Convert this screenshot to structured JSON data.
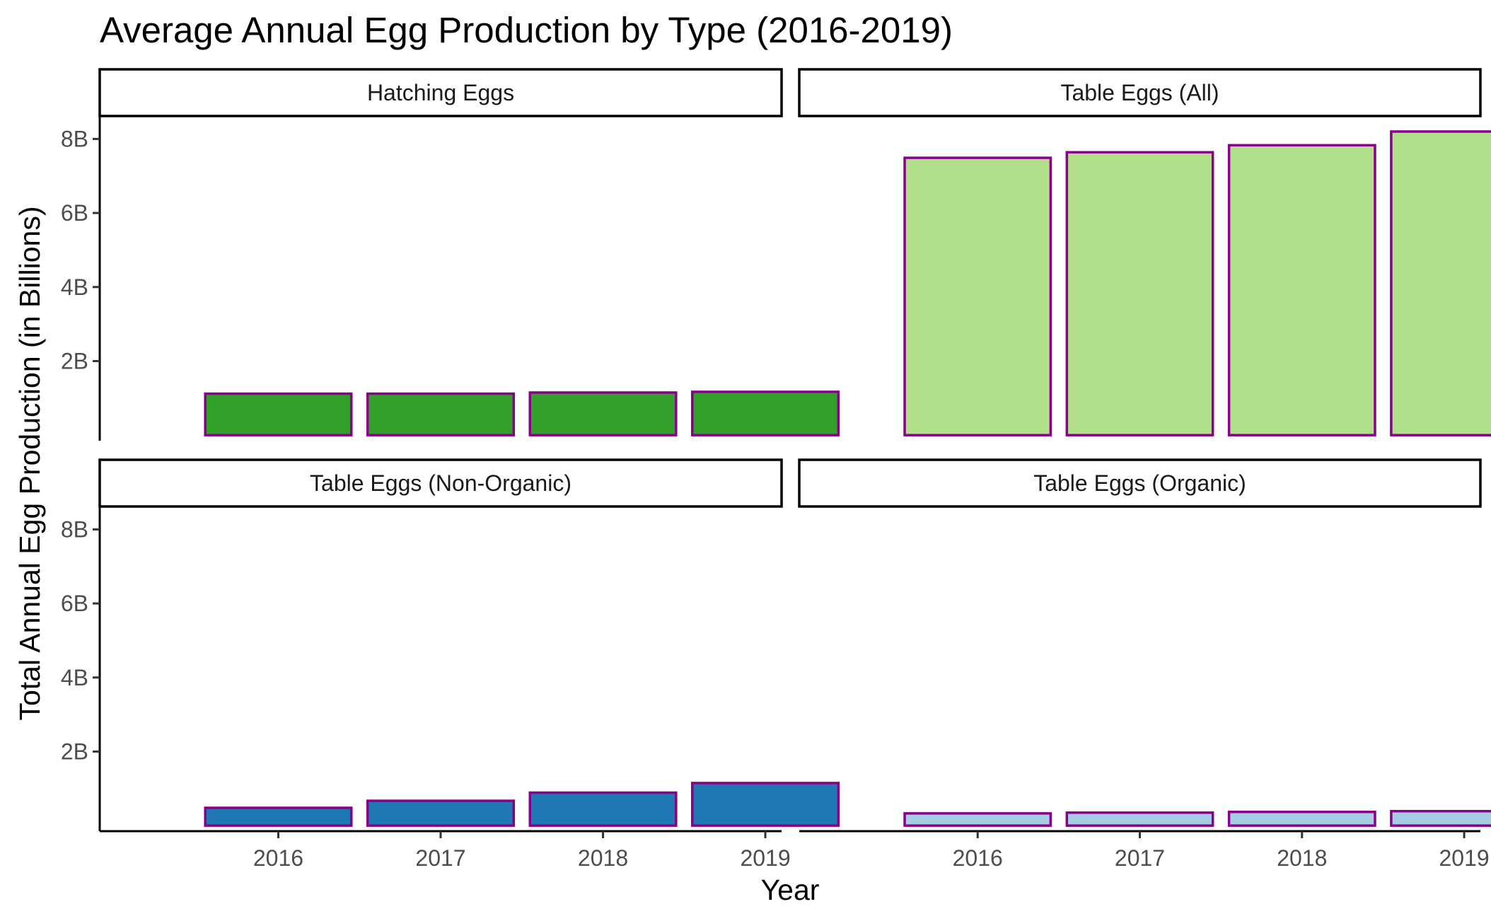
{
  "chart_data": {
    "type": "bar",
    "title": "Average Annual Egg Production by Type (2016-2019)",
    "xlabel": "Year",
    "ylabel": "Total Annual Egg Production (in Billions)",
    "unit": "billions of eggs",
    "categories": [
      "2016",
      "2017",
      "2018",
      "2019"
    ],
    "y_ticks": [
      2,
      4,
      6,
      8
    ],
    "y_tick_labels": [
      "2B",
      "4B",
      "6B",
      "8B"
    ],
    "ylim": [
      -0.15,
      8.6
    ],
    "bar_border_color": "#8B008B",
    "grid": false,
    "legend": "none",
    "layout": "facet 2x2",
    "panels": [
      {
        "name": "Hatching Eggs",
        "color": "#33A02C",
        "values": [
          1.12,
          1.12,
          1.15,
          1.17
        ]
      },
      {
        "name": "Table Eggs (All)",
        "color": "#B2DF8A",
        "values": [
          7.49,
          7.64,
          7.83,
          8.2
        ]
      },
      {
        "name": "Table Eggs (Non-Organic)",
        "color": "#1F78B4",
        "values": [
          0.48,
          0.67,
          0.89,
          1.15
        ]
      },
      {
        "name": "Table Eggs (Organic)",
        "color": "#A6CEE3",
        "values": [
          0.33,
          0.35,
          0.37,
          0.39
        ]
      }
    ]
  }
}
